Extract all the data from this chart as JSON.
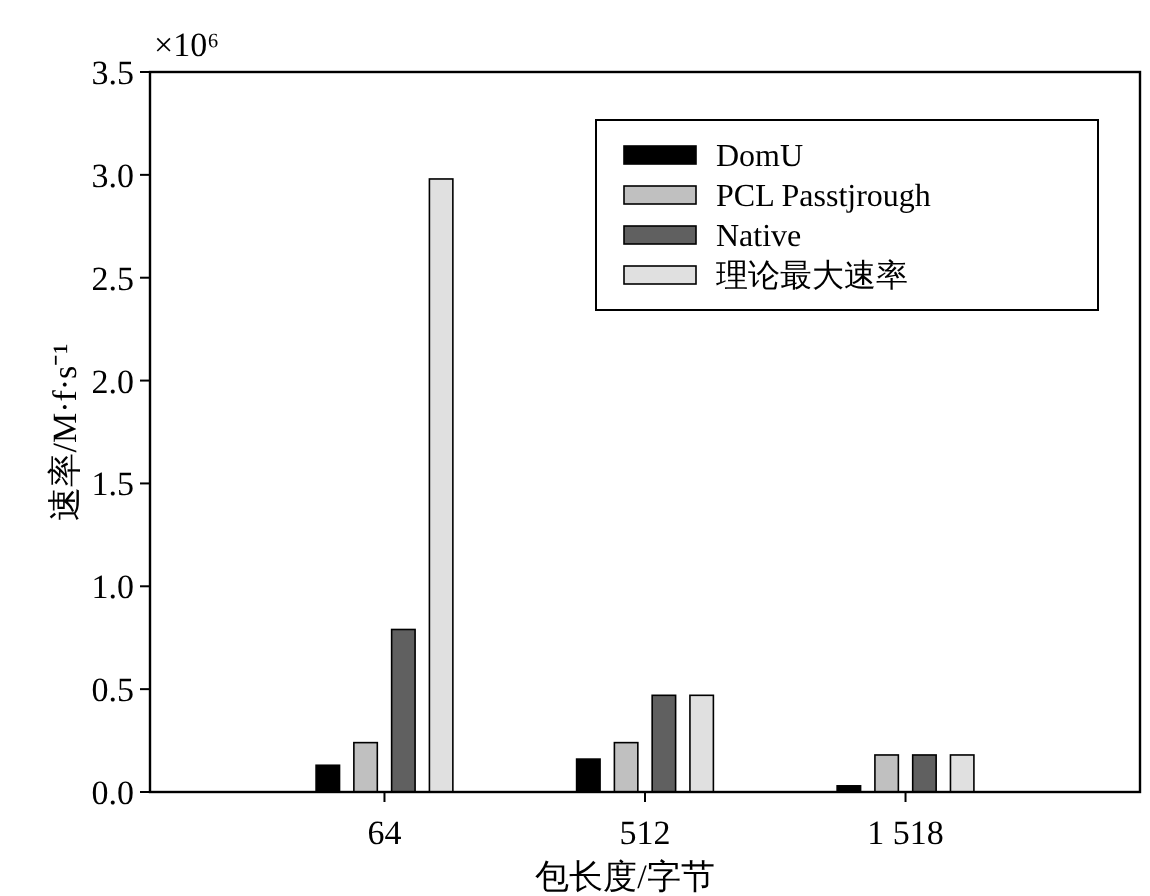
{
  "chart_data": {
    "type": "bar",
    "xlabel": "包长度/字节",
    "ylabel": "速率/M·f·s⁻¹",
    "annotations": [
      "×10⁶"
    ],
    "categories": [
      "64",
      "512",
      "1 518"
    ],
    "series": [
      {
        "name": "DomU",
        "color": "#000000",
        "values": [
          0.13,
          0.16,
          0.03
        ]
      },
      {
        "name": "PCL Passtjrough",
        "color": "#c0c0c0",
        "values": [
          0.24,
          0.24,
          0.18
        ]
      },
      {
        "name": "Native",
        "color": "#606060",
        "values": [
          0.79,
          0.47,
          0.18
        ]
      },
      {
        "name": "理论最大速率",
        "color": "#e0e0e0",
        "values": [
          2.98,
          0.47,
          0.18
        ]
      }
    ],
    "ylim": [
      0,
      3.5
    ],
    "yticks": [
      {
        "value": 0,
        "label": "0.0"
      },
      {
        "value": 0.5,
        "label": "0.5"
      },
      {
        "value": 1,
        "label": "1.0"
      },
      {
        "value": 1.5,
        "label": "1.5"
      },
      {
        "value": 2,
        "label": "2.0"
      },
      {
        "value": 2.5,
        "label": "2.5"
      },
      {
        "value": 3,
        "label": "3.0"
      },
      {
        "value": 3.5,
        "label": "3.5"
      }
    ],
    "grid": false,
    "legend": "top right"
  }
}
